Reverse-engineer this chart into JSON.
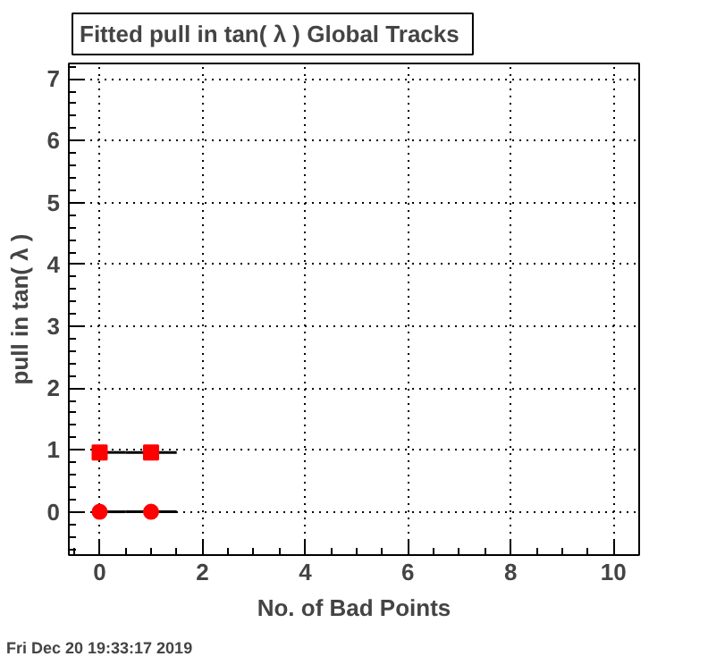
{
  "chart_data": {
    "type": "scatter",
    "title": "Fitted pull in tan( λ )  Global Tracks",
    "xlabel": "No. of Bad Points",
    "ylabel": "pull in tan( λ )",
    "annotations": [
      "Fri Dec 20 19:33:17 2019"
    ],
    "xlim": [
      -0.6,
      10.5
    ],
    "xticks": [
      0,
      2,
      4,
      6,
      8,
      10
    ],
    "ylim": [
      -0.7,
      7.25
    ],
    "yticks": [
      0,
      1,
      2,
      3,
      4,
      5,
      6,
      7
    ],
    "grid": true,
    "x": [
      0,
      1
    ],
    "series": [
      {
        "color": "#ff0000",
        "marker": "circle",
        "values": [
          0,
          0
        ],
        "xerrors": [
          [
            0,
            0.5
          ],
          0.5
        ]
      },
      {
        "color": "#ff0000",
        "marker": "square",
        "values": [
          0.96,
          0.96
        ],
        "xerrors": [
          [
            0,
            0.5
          ],
          0.5
        ]
      }
    ]
  }
}
